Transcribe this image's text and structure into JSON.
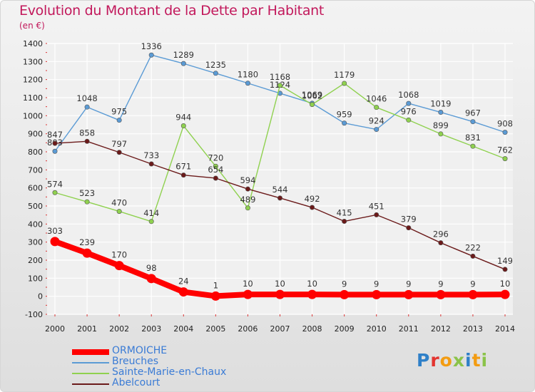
{
  "title": "Evolution du Montant de la Dette par Habitant",
  "unit": "(en €)",
  "logo": "Proxiti",
  "colors": {
    "ORMOICHE": "#ff0000",
    "Breuches": "#5b9bd5",
    "Sainte-Marie-en-Chaux": "#8fd14f",
    "Abelcourt": "#6b1a1a"
  },
  "chart_data": {
    "type": "line",
    "title": "Evolution du Montant de la Dette par Habitant",
    "ylabel": "(en €)",
    "xlabel": "",
    "ylim": [
      -100,
      1400
    ],
    "yticks": [
      -100,
      0,
      100,
      200,
      300,
      400,
      500,
      600,
      700,
      800,
      900,
      1000,
      1100,
      1200,
      1300,
      1400
    ],
    "grid": true,
    "legend_position": "bottom-left",
    "x": [
      "2000",
      "2001",
      "2002",
      "2003",
      "2004",
      "2005",
      "2006",
      "2007",
      "2008",
      "2009",
      "2010",
      "2011",
      "2012",
      "2013",
      "2014"
    ],
    "series": [
      {
        "name": "ORMOICHE",
        "color": "#ff0000",
        "values": [
          303,
          239,
          170,
          98,
          24,
          1,
          10,
          10,
          10,
          9,
          9,
          9,
          9,
          9,
          10
        ]
      },
      {
        "name": "Breuches",
        "color": "#5b9bd5",
        "values": [
          803,
          1048,
          975,
          1336,
          1289,
          1235,
          1180,
          1124,
          1069,
          959,
          924,
          1068,
          1019,
          967,
          908
        ]
      },
      {
        "name": "Sainte-Marie-en-Chaux",
        "color": "#8fd14f",
        "values": [
          574,
          523,
          470,
          414,
          944,
          720,
          489,
          1168,
          1062,
          1179,
          1046,
          976,
          899,
          831,
          762
        ]
      },
      {
        "name": "Abelcourt",
        "color": "#6b1a1a",
        "values": [
          847,
          858,
          797,
          733,
          671,
          654,
          594,
          544,
          492,
          415,
          451,
          379,
          296,
          222,
          149
        ]
      }
    ],
    "data_labels": [
      [
        "303",
        "239",
        "170",
        "98",
        "24",
        "1",
        "10",
        "10",
        "10",
        "9",
        "9",
        "9",
        "9",
        "9",
        "10"
      ],
      [
        "803",
        "1048",
        "975",
        "1336",
        "1289",
        "1235",
        "1180",
        "1124",
        "1069",
        "959",
        "924",
        "1068",
        "1019",
        "967",
        "908"
      ],
      [
        "574",
        "523",
        "470",
        "414",
        "944",
        "720",
        "489",
        "1168",
        "1062",
        "1179",
        "1046",
        "976",
        "899",
        "831",
        "762"
      ],
      [
        "847",
        "858",
        "797",
        "733",
        "671",
        "654",
        "594",
        "544",
        "492",
        "415",
        "451",
        "379",
        "296",
        "222",
        "149"
      ]
    ]
  }
}
